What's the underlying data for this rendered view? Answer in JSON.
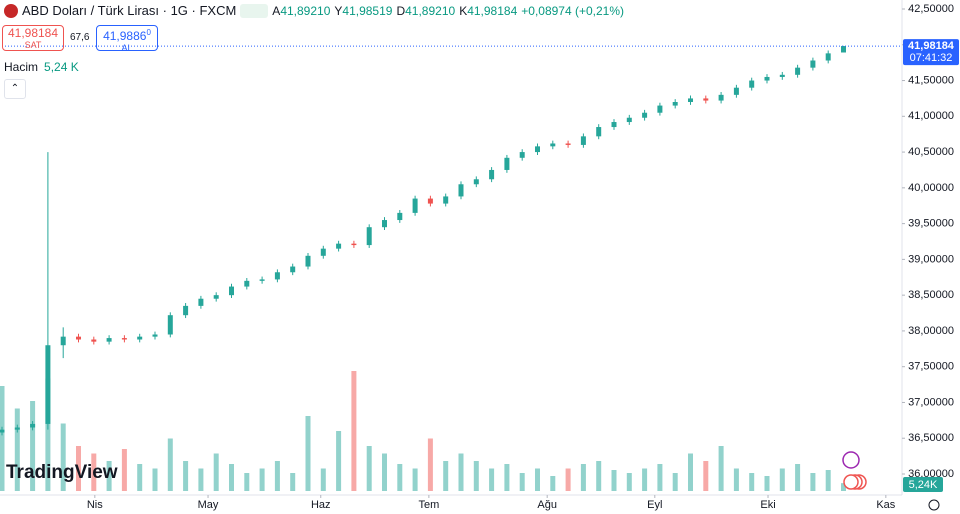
{
  "chart_data": {
    "type": "candlestick",
    "title": "ABD Doları / Türk Lirası · 1G · FXCM",
    "ohlc": [
      {
        "key": "A",
        "value": "41,89210"
      },
      {
        "key": "Y",
        "value": "41,98519"
      },
      {
        "key": "D",
        "value": "41,89210"
      },
      {
        "key": "K",
        "value": "41,98184"
      }
    ],
    "change": "+0,08974 (+0,21%)",
    "bid": {
      "value": "41,98184",
      "label": "SAT"
    },
    "spread": "67,6",
    "ask": {
      "value": "41,9886",
      "sup": "0",
      "label": "AL"
    },
    "volume_legend": {
      "name": "Hacim",
      "value": "5,24 K"
    },
    "watermark": "TradingView",
    "up_color": "#26a69a",
    "down_color": "#ef5350",
    "grid": false,
    "x": [
      0,
      3,
      6,
      9,
      12,
      15,
      18,
      21,
      24,
      27,
      30,
      33,
      36,
      39,
      42,
      45,
      48,
      51,
      54,
      57,
      60,
      63,
      66,
      69,
      72,
      75,
      78,
      81,
      84,
      87,
      90,
      93,
      96,
      99,
      102,
      105,
      108,
      111,
      114,
      117,
      120,
      123,
      126,
      129,
      132,
      135,
      138,
      141,
      144,
      147,
      150,
      153,
      156,
      159,
      162,
      165
    ],
    "open": [
      36.58,
      36.62,
      36.65,
      36.7,
      37.8,
      37.92,
      37.88,
      37.85,
      37.9,
      37.88,
      37.92,
      37.95,
      38.22,
      38.35,
      38.45,
      38.5,
      38.62,
      38.7,
      38.72,
      38.82,
      38.9,
      39.05,
      39.15,
      39.22,
      39.2,
      39.45,
      39.55,
      39.65,
      39.85,
      39.78,
      39.88,
      40.05,
      40.12,
      40.25,
      40.42,
      40.5,
      40.58,
      40.62,
      40.6,
      40.72,
      40.85,
      40.92,
      40.98,
      41.05,
      41.15,
      41.2,
      41.25,
      41.22,
      41.3,
      41.4,
      41.5,
      41.55,
      41.58,
      41.68,
      41.78,
      41.8921
    ],
    "high": [
      36.66,
      36.69,
      36.74,
      40.5,
      38.05,
      37.96,
      37.92,
      37.94,
      37.94,
      37.96,
      37.99,
      38.26,
      38.39,
      38.49,
      38.54,
      38.66,
      38.74,
      38.76,
      38.86,
      38.94,
      39.09,
      39.19,
      39.26,
      39.26,
      39.49,
      39.59,
      39.69,
      39.89,
      39.89,
      39.92,
      40.09,
      40.16,
      40.29,
      40.46,
      40.54,
      40.62,
      40.66,
      40.66,
      40.76,
      40.89,
      40.96,
      41.02,
      41.09,
      41.19,
      41.24,
      41.29,
      41.29,
      41.34,
      41.44,
      41.54,
      41.59,
      41.62,
      41.72,
      41.82,
      41.92,
      41.98519
    ],
    "low": [
      36.54,
      36.58,
      36.61,
      36.62,
      37.62,
      37.84,
      37.81,
      37.81,
      37.84,
      37.84,
      37.88,
      37.91,
      38.18,
      38.31,
      38.41,
      38.46,
      38.58,
      38.66,
      38.68,
      38.78,
      38.86,
      39.01,
      39.11,
      39.16,
      39.16,
      39.41,
      39.51,
      39.61,
      39.74,
      39.74,
      39.84,
      40.01,
      40.08,
      40.21,
      40.38,
      40.46,
      40.54,
      40.56,
      40.56,
      40.68,
      40.81,
      40.88,
      40.94,
      41.01,
      41.11,
      41.16,
      41.18,
      41.18,
      41.26,
      41.36,
      41.46,
      41.51,
      41.54,
      41.64,
      41.74,
      41.8921
    ],
    "close": [
      36.62,
      36.65,
      36.7,
      37.8,
      37.92,
      37.88,
      37.85,
      37.9,
      37.88,
      37.92,
      37.95,
      38.22,
      38.35,
      38.45,
      38.5,
      38.62,
      38.7,
      38.72,
      38.82,
      38.9,
      39.05,
      39.15,
      39.22,
      39.2,
      39.45,
      39.55,
      39.65,
      39.85,
      39.78,
      39.88,
      40.05,
      40.12,
      40.25,
      40.42,
      40.5,
      40.58,
      40.62,
      40.6,
      40.72,
      40.85,
      40.92,
      40.98,
      41.05,
      41.15,
      41.2,
      41.25,
      41.22,
      41.3,
      41.4,
      41.5,
      41.55,
      41.58,
      41.68,
      41.78,
      41.88,
      41.98184
    ],
    "volume": [
      70,
      55,
      60,
      75,
      45,
      30,
      25,
      20,
      28,
      18,
      15,
      35,
      20,
      15,
      25,
      18,
      12,
      15,
      20,
      12,
      50,
      15,
      40,
      80,
      30,
      25,
      18,
      15,
      35,
      20,
      25,
      20,
      15,
      18,
      12,
      15,
      10,
      15,
      18,
      20,
      14,
      12,
      15,
      18,
      12,
      25,
      20,
      30,
      15,
      12,
      10,
      15,
      18,
      12,
      14,
      5.24
    ],
    "volume_last_label": "5,24K",
    "last_price": {
      "value": 41.98184,
      "label": "41,98184",
      "countdown": "07:41:32"
    },
    "xlim": [
      0,
      176
    ],
    "xticks": [
      {
        "value": 18.2,
        "label": "Nis"
      },
      {
        "value": 40.4,
        "label": "May"
      },
      {
        "value": 62.5,
        "label": "Haz"
      },
      {
        "value": 83.7,
        "label": "Tem"
      },
      {
        "value": 106.9,
        "label": "Ağu"
      },
      {
        "value": 128,
        "label": "Eyl"
      },
      {
        "value": 150.2,
        "label": "Eki"
      },
      {
        "value": 173.3,
        "label": "Kas"
      }
    ],
    "ylim": [
      36.0,
      42.5
    ],
    "yticks": [
      {
        "value": 36.0,
        "label": "36,00000"
      },
      {
        "value": 36.5,
        "label": "36,50000"
      },
      {
        "value": 37.0,
        "label": "37,00000"
      },
      {
        "value": 37.5,
        "label": "37,50000"
      },
      {
        "value": 38.0,
        "label": "38,00000"
      },
      {
        "value": 38.5,
        "label": "38,50000"
      },
      {
        "value": 39.0,
        "label": "39,00000"
      },
      {
        "value": 39.5,
        "label": "39,50000"
      },
      {
        "value": 40.0,
        "label": "40,00000"
      },
      {
        "value": 40.5,
        "label": "40,50000"
      },
      {
        "value": 41.0,
        "label": "41,00000"
      },
      {
        "value": 41.5,
        "label": "41,50000"
      },
      {
        "value": 42.0,
        "label": "42,00000"
      },
      {
        "value": 42.5,
        "label": "42,50000"
      }
    ]
  }
}
